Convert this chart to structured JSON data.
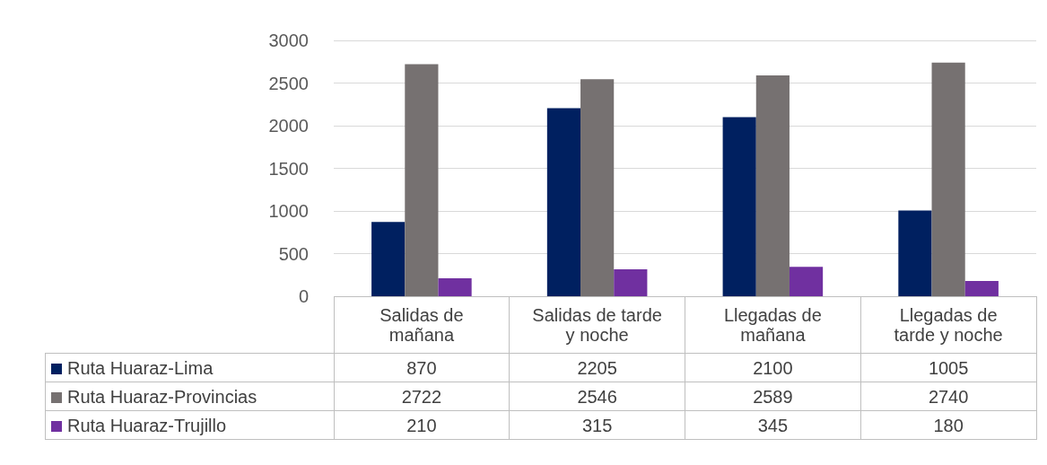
{
  "chart_data": {
    "type": "bar",
    "categories": [
      "Salidas de mañana",
      "Salidas de tarde y noche",
      "Llegadas de mañana",
      "Llegadas de tarde y noche"
    ],
    "series": [
      {
        "name": "Ruta Huaraz-Lima",
        "color": "#002060",
        "values": [
          870,
          2205,
          2100,
          1005
        ]
      },
      {
        "name": "Ruta Huaraz-Provincias",
        "color": "#767171",
        "values": [
          2722,
          2546,
          2589,
          2740
        ]
      },
      {
        "name": "Ruta Huaraz-Trujillo",
        "color": "#7030a0",
        "values": [
          210,
          315,
          345,
          180
        ]
      }
    ],
    "ylim": [
      0,
      3000
    ],
    "yticks": [
      0,
      500,
      1000,
      1500,
      2000,
      2500,
      3000
    ],
    "grid": "y",
    "legend": "bottom",
    "data_labels": true
  }
}
